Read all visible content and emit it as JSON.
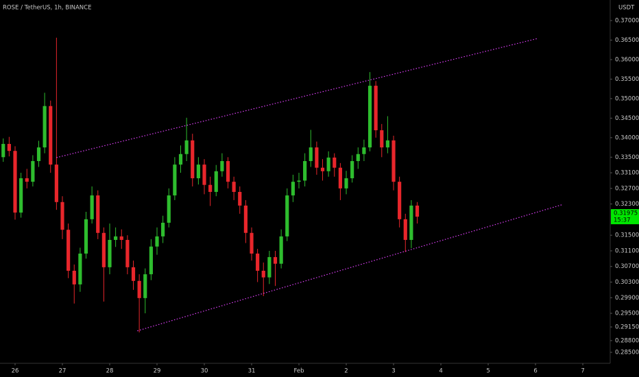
{
  "chart_data": {
    "type": "candlestick",
    "title": "ROSE / TetherUS, 1h, BINANCE",
    "currency": "USDT",
    "up_color": "#2ebd2e",
    "down_color": "#e8262b",
    "x": [
      -6,
      -3,
      0,
      3,
      6,
      9,
      12,
      15,
      18,
      21,
      24,
      27,
      30,
      33,
      36,
      39,
      42,
      45,
      48,
      51,
      54,
      57,
      60,
      63,
      66,
      69,
      72,
      75,
      78,
      81,
      84,
      87,
      90,
      93,
      96,
      99,
      102,
      105,
      108,
      111,
      114,
      117,
      120,
      123,
      126,
      129,
      132,
      135,
      138,
      141,
      144,
      147,
      150,
      153,
      156,
      159,
      162,
      165,
      168,
      171,
      174,
      177,
      180,
      183,
      186,
      189,
      192,
      195,
      198,
      201,
      204
    ],
    "open": [
      0.335,
      0.3384,
      0.3366,
      0.3208,
      0.3296,
      0.3287,
      0.334,
      0.3375,
      0.3481,
      0.3331,
      0.3235,
      0.3164,
      0.3059,
      0.3024,
      0.3103,
      0.3191,
      0.3252,
      0.3156,
      0.3068,
      0.3138,
      0.3147,
      0.3138,
      0.3068,
      0.3033,
      0.2989,
      0.305,
      0.3121,
      0.3147,
      0.3182,
      0.3252,
      0.3331,
      0.3358,
      0.3393,
      0.3296,
      0.3331,
      0.3279,
      0.3261,
      0.3314,
      0.334,
      0.3287,
      0.3261,
      0.3226,
      0.3156,
      0.3103,
      0.3059,
      0.3042,
      0.3094,
      0.3077,
      0.3147,
      0.3252,
      0.3287,
      0.329,
      0.334,
      0.3375,
      0.3323,
      0.3314,
      0.3349,
      0.3323,
      0.327,
      0.3296,
      0.334,
      0.3358,
      0.3375,
      0.3533,
      0.3419,
      0.3375,
      0.3393,
      0.3287,
      0.3191,
      0.3138,
      0.3226
    ],
    "high": [
      0.3398,
      0.3402,
      0.3378,
      0.331,
      0.332,
      0.3355,
      0.3392,
      0.3515,
      0.3495,
      0.3656,
      0.325,
      0.318,
      0.3075,
      0.3118,
      0.321,
      0.3275,
      0.3265,
      0.317,
      0.318,
      0.317,
      0.3165,
      0.315,
      0.3085,
      0.305,
      0.3065,
      0.314,
      0.317,
      0.32,
      0.327,
      0.335,
      0.338,
      0.3451,
      0.341,
      0.335,
      0.3345,
      0.33,
      0.333,
      0.336,
      0.335,
      0.33,
      0.3275,
      0.324,
      0.317,
      0.3115,
      0.308,
      0.311,
      0.311,
      0.3165,
      0.327,
      0.3305,
      0.331,
      0.336,
      0.342,
      0.339,
      0.3345,
      0.3365,
      0.336,
      0.3335,
      0.3315,
      0.3355,
      0.3375,
      0.3395,
      0.3568,
      0.3545,
      0.3435,
      0.3455,
      0.3405,
      0.33,
      0.3205,
      0.324,
      0.3235
    ],
    "low": [
      0.3338,
      0.3352,
      0.319,
      0.3195,
      0.327,
      0.3275,
      0.3325,
      0.336,
      0.331,
      0.3215,
      0.314,
      0.304,
      0.2975,
      0.3005,
      0.309,
      0.318,
      0.314,
      0.298,
      0.305,
      0.312,
      0.3115,
      0.305,
      0.301,
      0.2901,
      0.295,
      0.3035,
      0.31,
      0.313,
      0.317,
      0.324,
      0.331,
      0.334,
      0.3275,
      0.328,
      0.3255,
      0.3225,
      0.325,
      0.33,
      0.327,
      0.324,
      0.3205,
      0.313,
      0.3085,
      0.303,
      0.2994,
      0.3025,
      0.302,
      0.3065,
      0.3135,
      0.3235,
      0.327,
      0.3275,
      0.3325,
      0.3305,
      0.329,
      0.33,
      0.33,
      0.324,
      0.3255,
      0.3285,
      0.332,
      0.334,
      0.3365,
      0.34,
      0.335,
      0.336,
      0.3265,
      0.317,
      0.3107,
      0.3117,
      0.318
    ],
    "close": [
      0.3384,
      0.3366,
      0.3208,
      0.3296,
      0.3287,
      0.334,
      0.3375,
      0.3481,
      0.3331,
      0.3235,
      0.3164,
      0.3059,
      0.3024,
      0.3103,
      0.3191,
      0.3252,
      0.3156,
      0.3068,
      0.3138,
      0.3147,
      0.3138,
      0.3068,
      0.3033,
      0.2989,
      0.305,
      0.3121,
      0.3147,
      0.3182,
      0.3252,
      0.3331,
      0.3358,
      0.3393,
      0.3296,
      0.3331,
      0.3279,
      0.3261,
      0.3314,
      0.334,
      0.3287,
      0.3261,
      0.3226,
      0.3156,
      0.3103,
      0.3059,
      0.3042,
      0.3094,
      0.3077,
      0.3147,
      0.3252,
      0.3287,
      0.329,
      0.334,
      0.3375,
      0.3323,
      0.3314,
      0.3349,
      0.3323,
      0.327,
      0.3296,
      0.334,
      0.3358,
      0.3375,
      0.3533,
      0.3419,
      0.3375,
      0.3393,
      0.3287,
      0.3191,
      0.3138,
      0.3226,
      0.31975
    ],
    "last_price": 0.31975,
    "countdown": "15:37",
    "last_price_color": "#00e600",
    "trendlines": [
      {
        "x": [
          21,
          265
        ],
        "y": [
          0.3349,
          0.3654
        ],
        "color": "#e040fb"
      },
      {
        "x": [
          62,
          278
        ],
        "y": [
          0.2905,
          0.3229
        ],
        "color": "#e040fb"
      }
    ],
    "xlim": [
      -7.65,
      301.9
    ],
    "ylim": [
      0.28219,
      0.37527
    ],
    "xticks": [
      {
        "value": 0,
        "label": "26"
      },
      {
        "value": 24,
        "label": "27"
      },
      {
        "value": 48,
        "label": "28"
      },
      {
        "value": 72,
        "label": "29"
      },
      {
        "value": 96,
        "label": "30"
      },
      {
        "value": 120,
        "label": "31"
      },
      {
        "value": 144,
        "label": "Feb"
      },
      {
        "value": 168,
        "label": "2"
      },
      {
        "value": 192,
        "label": "3"
      },
      {
        "value": 216,
        "label": "4"
      },
      {
        "value": 240,
        "label": "5"
      },
      {
        "value": 264,
        "label": "6"
      },
      {
        "value": 288,
        "label": "7"
      }
    ],
    "yticks": [
      {
        "value": 0.37,
        "label": "0.37000"
      },
      {
        "value": 0.365,
        "label": "0.36500"
      },
      {
        "value": 0.36,
        "label": "0.36000"
      },
      {
        "value": 0.355,
        "label": "0.35500"
      },
      {
        "value": 0.35,
        "label": "0.35000"
      },
      {
        "value": 0.345,
        "label": "0.34500"
      },
      {
        "value": 0.34,
        "label": "0.34000"
      },
      {
        "value": 0.335,
        "label": "0.33500"
      },
      {
        "value": 0.331,
        "label": "0.33100"
      },
      {
        "value": 0.327,
        "label": "0.32700"
      },
      {
        "value": 0.323,
        "label": "0.32300"
      },
      {
        "value": 0.315,
        "label": "0.31500"
      },
      {
        "value": 0.311,
        "label": "0.31100"
      },
      {
        "value": 0.307,
        "label": "0.30700"
      },
      {
        "value": 0.303,
        "label": "0.30300"
      },
      {
        "value": 0.299,
        "label": "0.29900"
      },
      {
        "value": 0.295,
        "label": "0.29500"
      },
      {
        "value": 0.2915,
        "label": "0.29150"
      },
      {
        "value": 0.288,
        "label": "0.28800"
      },
      {
        "value": 0.285,
        "label": "0.28500"
      }
    ]
  }
}
